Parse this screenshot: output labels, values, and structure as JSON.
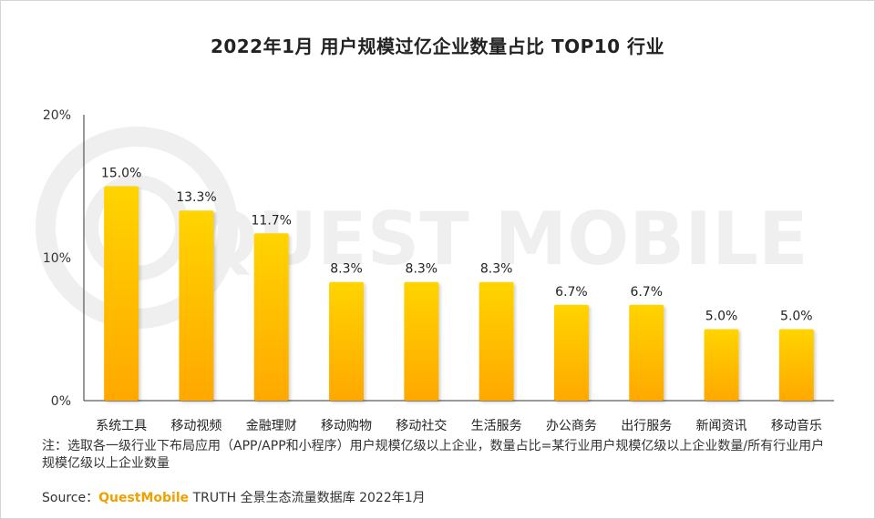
{
  "chart_data": {
    "type": "bar",
    "title": "2022年1月 用户规模过亿企业数量占比 TOP10 行业",
    "categories": [
      "系统工具",
      "移动视频",
      "金融理财",
      "移动购物",
      "移动社交",
      "生活服务",
      "办公商务",
      "出行服务",
      "新闻资讯",
      "移动音乐"
    ],
    "values": [
      15.0,
      13.3,
      11.7,
      8.3,
      8.3,
      8.3,
      6.7,
      6.7,
      5.0,
      5.0
    ],
    "value_labels": [
      "15.0%",
      "13.3%",
      "11.7%",
      "8.3%",
      "8.3%",
      "8.3%",
      "6.7%",
      "6.7%",
      "5.0%",
      "5.0%"
    ],
    "yticks": [
      0,
      10,
      20
    ],
    "ytick_labels": [
      "0%",
      "10%",
      "20%"
    ],
    "ylim": [
      0,
      20
    ],
    "xlabel": "",
    "ylabel": "",
    "bar_color_top": "#ffd400",
    "bar_color_bottom": "#ffa800"
  },
  "watermark": "QUEST MOBILE",
  "note": "注：选取各一级行业下布局应用（APP/APP和小程序）用户规模亿级以上企业，数量占比=某行业用户规模亿级以上企业数量/所有行业用户规模亿级以上企业数量",
  "source": {
    "prefix": "Source：",
    "brand": "QuestMobile",
    "text": " TRUTH 全景生态流量数据库 2022年1月"
  }
}
